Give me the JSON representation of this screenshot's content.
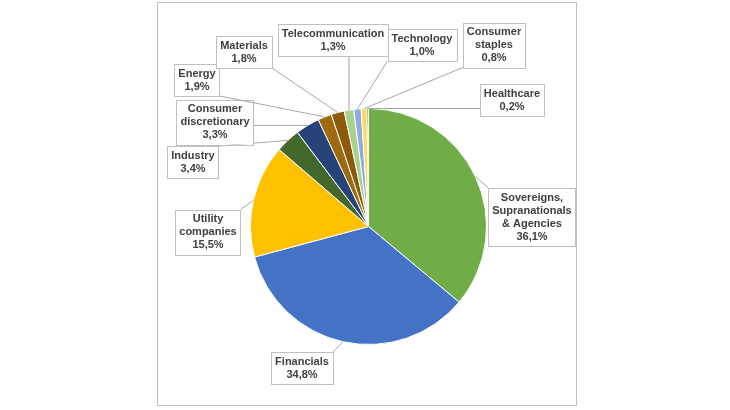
{
  "chart_data": {
    "type": "pie",
    "categories": [
      "Sovereigns, Supranationals & Agencies",
      "Financials",
      "Utility companies",
      "Industry",
      "Consumer discretionary",
      "Energy",
      "Materials",
      "Telecommunication",
      "Technology",
      "Consumer staples",
      "Healthcare"
    ],
    "values": [
      36.1,
      34.8,
      15.5,
      3.4,
      3.3,
      1.9,
      1.8,
      1.3,
      1.0,
      0.8,
      0.2
    ],
    "value_labels": [
      "36,1%",
      "34,8%",
      "15,5%",
      "3,4%",
      "3,3%",
      "1,9%",
      "1,8%",
      "1,3%",
      "1,0%",
      "0,8%",
      "0,2%"
    ],
    "colors": [
      "#70AD47",
      "#4472C4",
      "#FFC000",
      "#43682B",
      "#264478",
      "#9E6A0E",
      "#8C5A0A",
      "#A9D18E",
      "#8FAADC",
      "#FFD966",
      "#375623"
    ],
    "data_labels": true
  }
}
